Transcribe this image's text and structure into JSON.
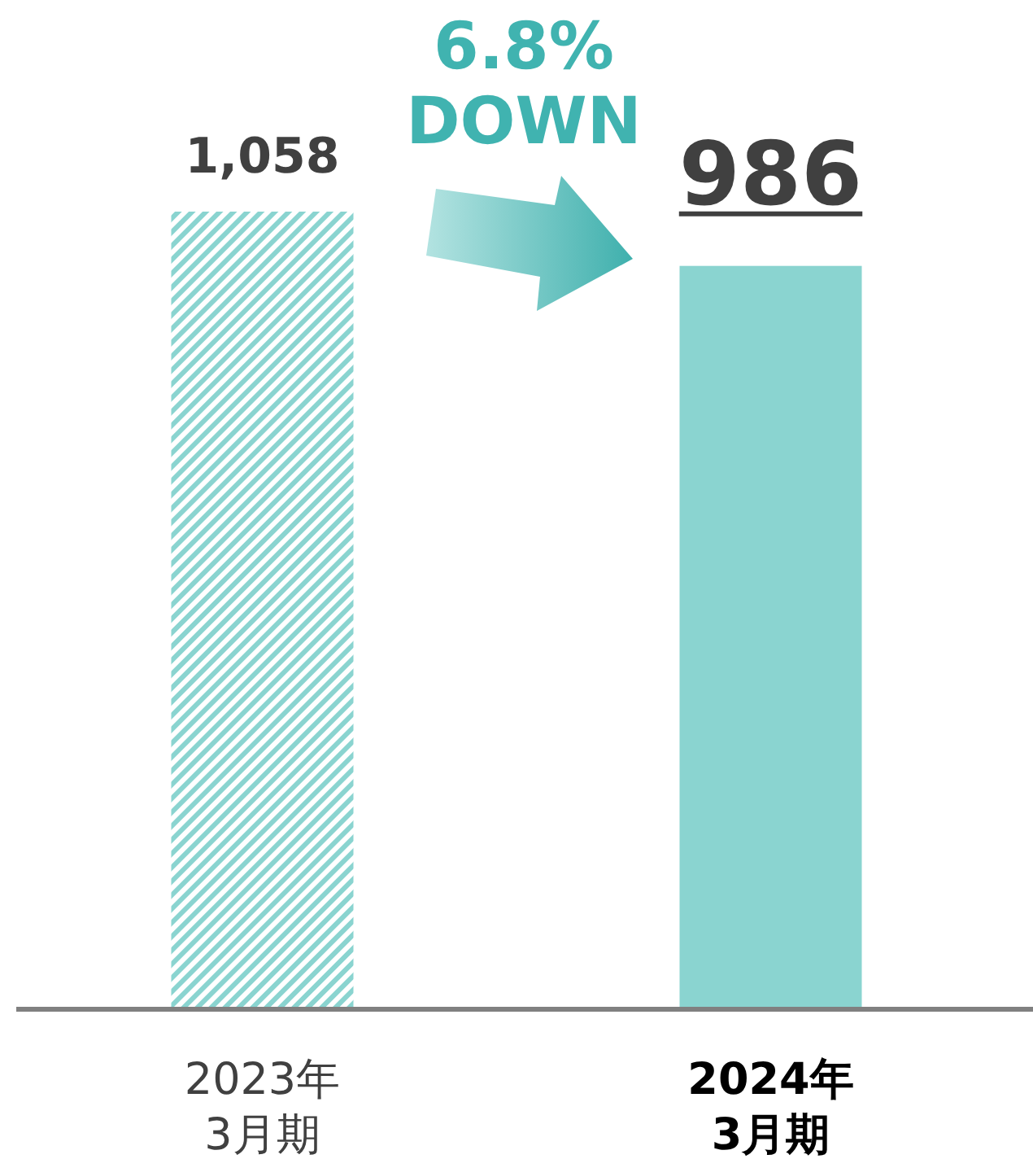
{
  "chart_data": {
    "type": "bar",
    "categories": [
      "2023年\n3月期",
      "2024年\n3月期"
    ],
    "values": [
      1058,
      986
    ],
    "value_labels": [
      "1,058",
      "986"
    ],
    "colors": [
      "#8ad4d0",
      "#8ad4d0"
    ],
    "annotations": [
      "6.8%\nDOWN"
    ]
  }
}
